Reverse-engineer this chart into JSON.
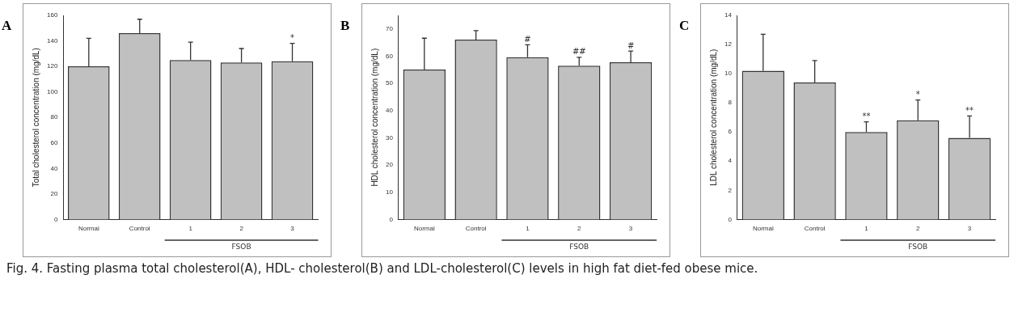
{
  "chart_data": [
    {
      "type": "bar",
      "title": "A",
      "ylabel": "Total cholesterol concentration (mg/dL)",
      "categories": [
        "Normal",
        "Control",
        "1",
        "2",
        "3"
      ],
      "values": [
        120,
        146,
        125,
        123,
        124
      ],
      "errors": [
        [
          120,
          142
        ],
        [
          146,
          157
        ],
        [
          125,
          139
        ],
        [
          123,
          134
        ],
        [
          124,
          138
        ]
      ],
      "color": "#c0c0c0",
      "ylim": [
        0,
        160
      ],
      "yticks": [
        0,
        20,
        40,
        60,
        80,
        100,
        120,
        140,
        160
      ],
      "grid": false,
      "annotations": [
        "FSOB",
        "*",
        "Fig. 4. Fasting plasma total cholesterol(A), HDL- cholesterol(B) and LDL-cholesterol(C) levels in high fat diet-fed obese mice."
      ]
    },
    {
      "type": "bar",
      "title": "B",
      "ylabel": "HDL cholesterol concentration (mg/dL)",
      "categories": [
        "Normal",
        "Control",
        "1",
        "2",
        "3"
      ],
      "values": [
        55.1,
        66.1,
        59.6,
        56.5,
        57.8
      ],
      "errors": [
        [
          55.1,
          66.6
        ],
        [
          66.1,
          69.4
        ],
        [
          59.6,
          64.2
        ],
        [
          56.5,
          59.6
        ],
        [
          57.8,
          61.9
        ]
      ],
      "color": "#c0c0c0",
      "ylim": [
        0,
        75
      ],
      "yticks": [
        0,
        10,
        20,
        30,
        40,
        50,
        60,
        70
      ],
      "grid": false,
      "annotations": [
        "FSOB",
        "#",
        "##",
        "#"
      ]
    },
    {
      "type": "bar",
      "title": "C",
      "ylabel": "LDL cholesterol concentration (mg/dL)",
      "categories": [
        "Normal",
        "Control",
        "1",
        "2",
        "3"
      ],
      "values": [
        10.2,
        9.4,
        6.0,
        6.8,
        5.6
      ],
      "errors": [
        [
          10.2,
          12.7
        ],
        [
          9.4,
          10.9
        ],
        [
          6.0,
          6.7
        ],
        [
          6.8,
          8.2
        ],
        [
          5.6,
          7.1
        ]
      ],
      "color": "#c0c0c0",
      "ylim": [
        0,
        14
      ],
      "yticks": [
        0,
        2,
        4,
        6,
        8,
        10,
        12,
        14
      ],
      "grid": false,
      "annotations": [
        "FSOB",
        "**",
        "*",
        "**"
      ]
    }
  ]
}
